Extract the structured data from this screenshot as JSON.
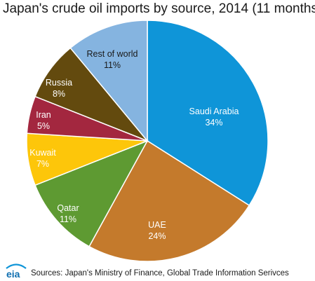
{
  "title": "Japan's crude oil imports by source, 2014 (11 months)",
  "source": "Sources: Japan's Ministry of Finance, Global Trade Information Serivces",
  "logo_text": "eia",
  "chart_data": {
    "type": "pie",
    "title": "Japan's crude oil imports by source, 2014 (11 months)",
    "slices": [
      {
        "label": "Saudi Arabia",
        "value": 34,
        "value_label": "34%",
        "color": "#0f95d8",
        "text_color": "#ffffff"
      },
      {
        "label": "UAE",
        "value": 24,
        "value_label": "24%",
        "color": "#c47a2c",
        "text_color": "#ffffff"
      },
      {
        "label": "Qatar",
        "value": 11,
        "value_label": "11%",
        "color": "#5e9a32",
        "text_color": "#ffffff"
      },
      {
        "label": "Kuwait",
        "value": 7,
        "value_label": "7%",
        "color": "#fdc60a",
        "text_color": "#ffffff"
      },
      {
        "label": "Iran",
        "value": 5,
        "value_label": "5%",
        "color": "#a3273f",
        "text_color": "#ffffff"
      },
      {
        "label": "Russia",
        "value": 8,
        "value_label": "8%",
        "color": "#634a0e",
        "text_color": "#ffffff"
      },
      {
        "label": "Rest of world",
        "value": 11,
        "value_label": "11%",
        "color": "#85b4e0",
        "text_color": "#1a1a1a"
      }
    ]
  }
}
